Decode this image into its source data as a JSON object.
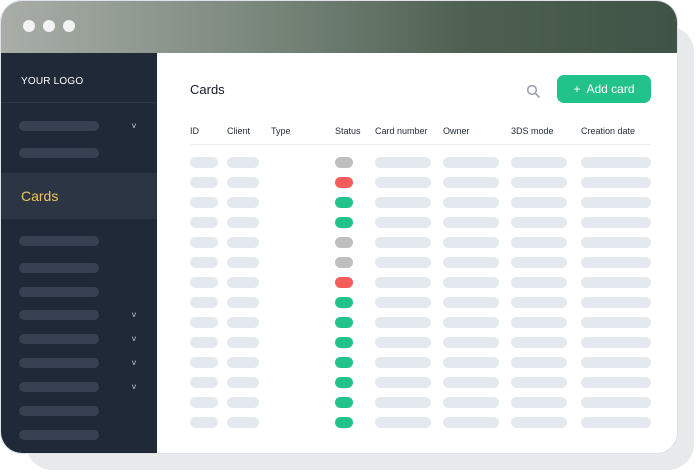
{
  "sidebar": {
    "logo": "YOUR LOGO",
    "active_item": "Cards",
    "items": [
      {
        "placeholder": true,
        "chevron": true
      },
      {
        "placeholder": true,
        "chevron": false
      },
      {
        "placeholder": true,
        "chevron": false
      },
      {
        "placeholder": true,
        "chevron": false
      },
      {
        "placeholder": true,
        "chevron": false
      },
      {
        "placeholder": true,
        "chevron": true
      },
      {
        "placeholder": true,
        "chevron": true
      },
      {
        "placeholder": true,
        "chevron": true
      },
      {
        "placeholder": true,
        "chevron": true
      },
      {
        "placeholder": true,
        "chevron": false
      },
      {
        "placeholder": true,
        "chevron": false
      }
    ]
  },
  "header": {
    "title": "Cards",
    "search_icon": "search-icon",
    "add_button_label": "Add card"
  },
  "table": {
    "columns": [
      "ID",
      "Client",
      "Type",
      "Status",
      "Card number",
      "Owner",
      "3DS mode",
      "Creation date"
    ],
    "row_statuses": [
      "gray",
      "red",
      "green",
      "green",
      "gray",
      "gray",
      "red",
      "green",
      "green",
      "green",
      "green",
      "green",
      "green",
      "green"
    ]
  },
  "colors": {
    "accent": "#22c38a",
    "active_text": "#f2c45a",
    "sidebar": "#1f2937",
    "status_gray": "#bfbfbf",
    "status_red": "#f45b5b",
    "status_green": "#22c38a",
    "placeholder": "#e3e9ef"
  }
}
